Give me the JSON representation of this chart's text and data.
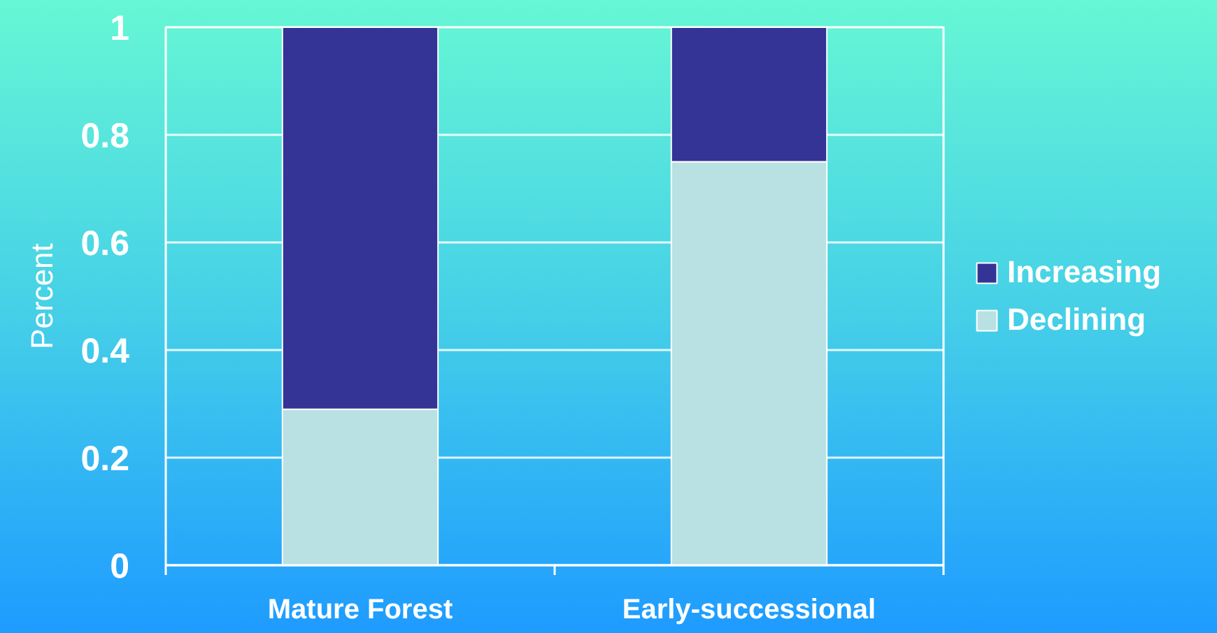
{
  "chart_data": {
    "type": "bar",
    "stacked": true,
    "ylabel": "Percent",
    "categories": [
      "Mature Forest",
      "Early-successional"
    ],
    "series": [
      {
        "name": "Declining",
        "color": "#b9e0e2",
        "values": [
          0.29,
          0.75
        ]
      },
      {
        "name": "Increasing",
        "color": "#343396",
        "values": [
          0.71,
          0.25
        ]
      }
    ],
    "ylim": [
      0,
      1
    ],
    "yticks": [
      0,
      0.2,
      0.4,
      0.6,
      0.8,
      1
    ],
    "grid": "y",
    "legend": "right"
  }
}
